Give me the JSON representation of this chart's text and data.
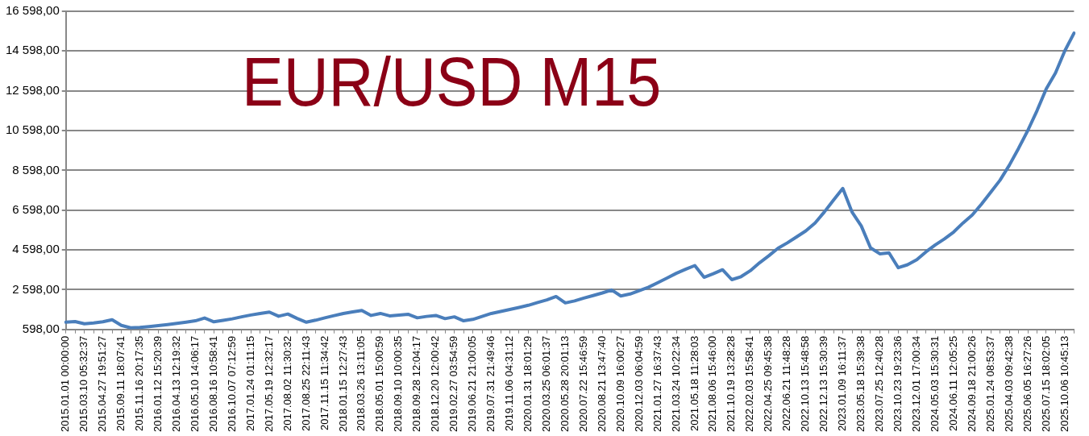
{
  "chart_data": {
    "type": "line",
    "title": "EUR/USD M15",
    "categories": [
      "2015.01.01 00:00:00",
      null,
      "2015.03.10 05:32:37",
      null,
      "2015.04.27 19:51:27",
      null,
      "2015.09.11 18:07:41",
      null,
      "2015.11.16 20:17:35",
      null,
      "2016.01.12 15:20:39",
      null,
      "2016.04.13 12:19:32",
      null,
      "2016.05.10 14:06:17",
      null,
      "2016.08.16 10:58:41",
      null,
      "2016.10.07 07:12:59",
      null,
      "2017.01.24 01:11:15",
      null,
      "2017.05.19 12:32:17",
      null,
      "2017.08.02 11:30:32",
      null,
      "2017.08.25 22:11:43",
      null,
      "2017.11.15 11:34:42",
      null,
      "2018.01.15 12:27:43",
      null,
      "2018.03.26 13:11:05",
      null,
      "2018.05.01 15:00:59",
      null,
      "2018.09.10 10:00:35",
      null,
      "2018.09.28 12:04:17",
      null,
      "2018.12.20 12:00:42",
      null,
      "2019.02.27 03:54:59",
      null,
      "2019.06.21 21:00:05",
      null,
      "2019.07.31 21:49:46",
      null,
      "2019.11.06 04:31:12",
      null,
      "2020.01.31 18:01:29",
      null,
      "2020.03.25 06:01:37",
      null,
      "2020.05.28 20:01:13",
      null,
      "2020.07.22 15:46:59",
      null,
      "2020.08.21 13:47:40",
      null,
      "2020.10.09 16:00:27",
      null,
      "2020.12.03 06:04:59",
      null,
      "2021.01.27 16:37:43",
      null,
      "2021.03.24 10:22:34",
      null,
      "2021.05.18 11:28:03",
      null,
      "2021.08.06 15:46:00",
      null,
      "2021.10.19 13:28:28",
      null,
      "2022.02.03 15:58:41",
      null,
      "2022.04.25 09:45:38",
      null,
      "2022.06.21 11:48:28",
      null,
      "2022.10.13 15:48:58",
      null,
      "2022.12.13 15:30:39",
      null,
      "2023.01.09 16:11:37",
      null,
      "2023.05.18 15:39:38",
      null,
      "2023.07.25 12:40:28",
      null,
      "2023.10.23 19:23:36",
      null,
      "2023.12.01 17:00:34",
      null,
      "2024.05.03 15:30:31",
      null,
      "2024.06.11 12:05:25",
      null,
      "2024.09.18 21:00:26",
      null,
      "2025.01.24 08:53:37",
      null,
      "2025.04.03 09:42:38",
      null,
      "2025.06.05 16:27:26",
      null,
      "2025.07.15 18:02:05",
      null,
      "2025.10.06 10:45:13",
      null
    ],
    "series": [
      {
        "color": "#4a7ebb",
        "values": [
          960,
          990,
          880,
          920,
          980,
          1080,
          800,
          680,
          700,
          740,
          790,
          840,
          900,
          960,
          1030,
          1170,
          980,
          1050,
          1130,
          1230,
          1320,
          1400,
          1470,
          1260,
          1370,
          1150,
          960,
          1060,
          1180,
          1290,
          1400,
          1480,
          1550,
          1300,
          1400,
          1280,
          1320,
          1360,
          1180,
          1250,
          1300,
          1140,
          1230,
          1030,
          1100,
          1250,
          1400,
          1500,
          1600,
          1700,
          1810,
          1950,
          2080,
          2250,
          1930,
          2030,
          2170,
          2300,
          2430,
          2580,
          2280,
          2380,
          2550,
          2720,
          2950,
          3180,
          3420,
          3620,
          3810,
          3220,
          3400,
          3600,
          3100,
          3250,
          3550,
          3950,
          4300,
          4680,
          4950,
          5250,
          5550,
          5950,
          6500,
          7100,
          7690,
          6500,
          5800,
          4700,
          4400,
          4450,
          3700,
          3850,
          4100,
          4500,
          4850,
          5150,
          5500,
          5950,
          6350,
          6900,
          7500,
          8100,
          8850,
          9700,
          10600,
          11600,
          12700,
          13500,
          14600,
          15500
        ]
      }
    ],
    "ylim": [
      598,
      16598
    ],
    "yticks": [
      {
        "value": 598,
        "label": "598,00"
      },
      {
        "value": 2598,
        "label": "2 598,00"
      },
      {
        "value": 4598,
        "label": "4 598,00"
      },
      {
        "value": 6598,
        "label": "6 598,00"
      },
      {
        "value": 8598,
        "label": "8 598,00"
      },
      {
        "value": 10598,
        "label": "10 598,00"
      },
      {
        "value": 12598,
        "label": "12 598,00"
      },
      {
        "value": 14598,
        "label": "14 598,00"
      },
      {
        "value": 16598,
        "label": "16 598,00"
      }
    ],
    "grid": "y",
    "legend": false,
    "marker": "none",
    "line_style": "solid"
  }
}
